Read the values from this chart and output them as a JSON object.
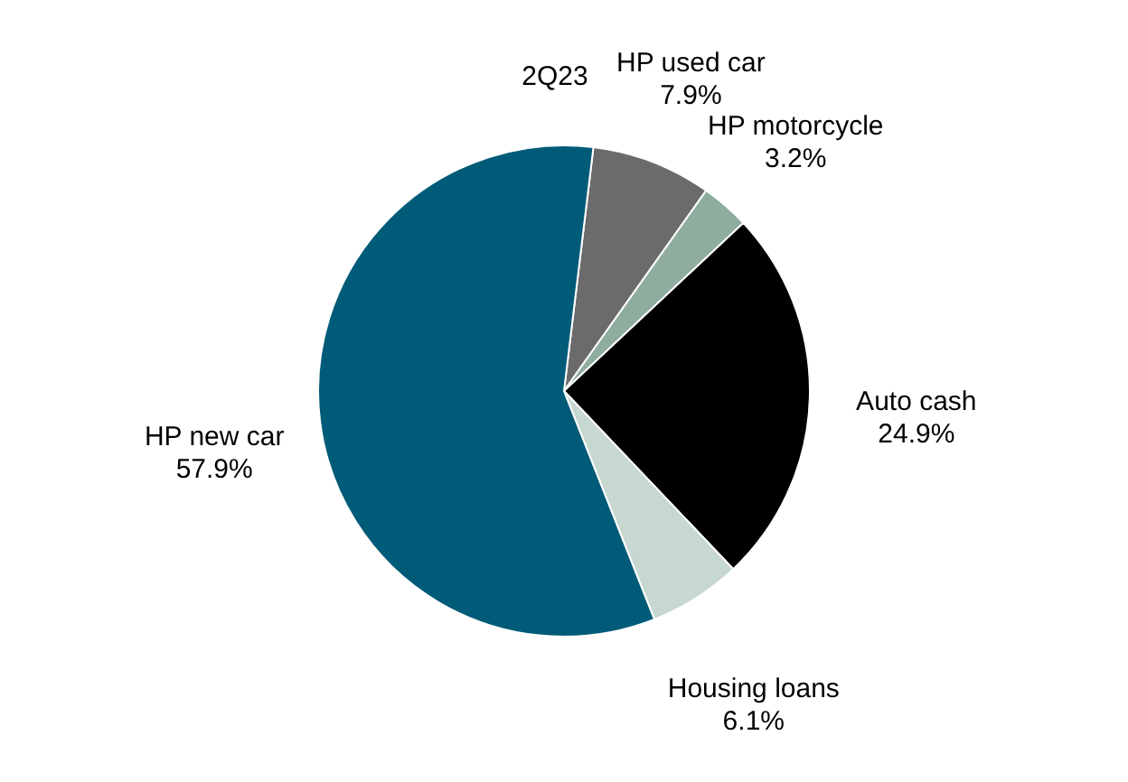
{
  "chart_data": {
    "type": "pie",
    "title": "2Q23",
    "categories": [
      "HP used car",
      "HP motorcycle",
      "Auto cash",
      "Housing loans",
      "HP new car"
    ],
    "values": [
      7.9,
      3.2,
      24.9,
      6.1,
      57.9
    ],
    "value_labels": [
      "7.9%",
      "3.2%",
      "24.9%",
      "6.1%",
      "57.9%"
    ],
    "colors": [
      "#6b6b6b",
      "#8fad9f",
      "#000000",
      "#c6d8d0",
      "#005b78"
    ],
    "legend": false
  }
}
